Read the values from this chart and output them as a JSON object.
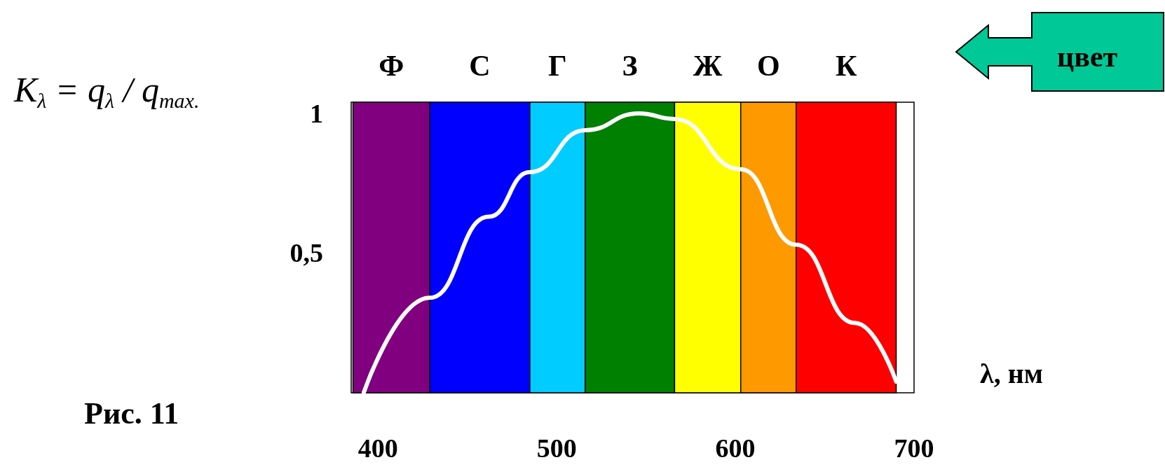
{
  "chart_data": {
    "type": "line",
    "ylabel": "K$_{λ}$ = q$_{λ}$ / q$_{max.}$",
    "xlabel": "λ, нм",
    "annotations": [
      "Рис. 11",
      "цвет"
    ],
    "x": [
      392,
      429,
      462,
      485,
      516,
      546,
      566,
      603,
      634,
      667,
      690
    ],
    "values": [
      0,
      0.34,
      0.63,
      0.79,
      0.94,
      1.0,
      0.98,
      0.8,
      0.53,
      0.25,
      0.04
    ],
    "color": "#ffffff",
    "marker": "none",
    "line_style": "solid",
    "grid": false,
    "xlim": [
      385,
      700
    ],
    "xticks": [
      400,
      500,
      600,
      700
    ],
    "ylim": [
      0,
      1.04
    ],
    "yticks": [
      {
        "value": 0.5,
        "label": "0,5"
      },
      1
    ],
    "bands": [
      {
        "axis": "x",
        "from": 386,
        "to": 429,
        "label": "Ф",
        "color": "#800080"
      },
      {
        "axis": "x",
        "from": 429,
        "to": 485,
        "label": "С",
        "color": "#0000ff"
      },
      {
        "axis": "x",
        "from": 485,
        "to": 516,
        "label": "Г",
        "color": "#00ccff"
      },
      {
        "axis": "x",
        "from": 516,
        "to": 566,
        "label": "З",
        "color": "#008000"
      },
      {
        "axis": "x",
        "from": 566,
        "to": 603,
        "label": "Ж",
        "color": "#ffff00"
      },
      {
        "axis": "x",
        "from": 603,
        "to": 634,
        "label": "О",
        "color": "#ff9900"
      },
      {
        "axis": "x",
        "from": 634,
        "to": 690,
        "label": "К",
        "color": "#ff0000"
      }
    ]
  }
}
